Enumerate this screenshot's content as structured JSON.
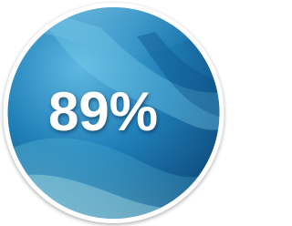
{
  "badge": {
    "text": "89%"
  }
}
